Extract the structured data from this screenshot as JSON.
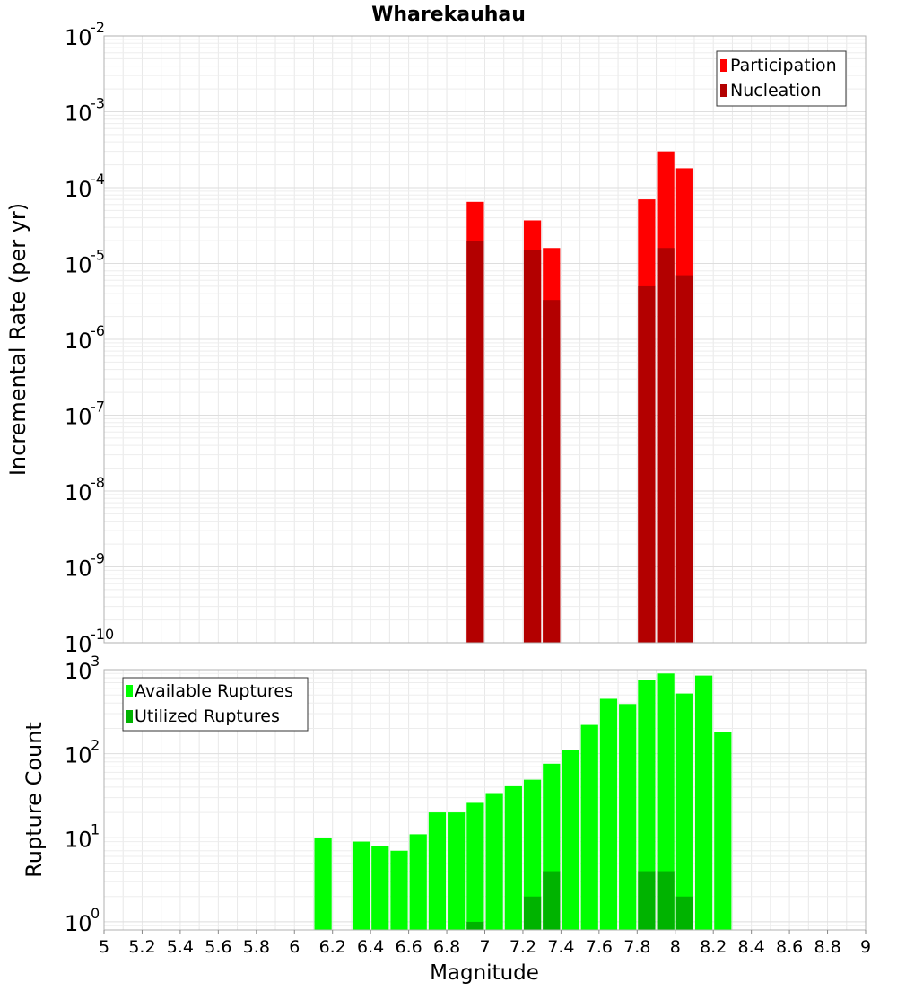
{
  "chart_data": [
    {
      "type": "bar",
      "title": "Wharekauhau",
      "ylabel": "Incremental Rate (per yr)",
      "xlabel": "",
      "y_scale": "log",
      "ylim": [
        1e-10,
        0.01
      ],
      "xlim": [
        5,
        9
      ],
      "y_ticks": [
        {
          "base": "10",
          "exp": "-10"
        },
        {
          "base": "10",
          "exp": "-9"
        },
        {
          "base": "10",
          "exp": "-8"
        },
        {
          "base": "10",
          "exp": "-7"
        },
        {
          "base": "10",
          "exp": "-6"
        },
        {
          "base": "10",
          "exp": "-5"
        },
        {
          "base": "10",
          "exp": "-4"
        },
        {
          "base": "10",
          "exp": "-3"
        },
        {
          "base": "10",
          "exp": "-2"
        }
      ],
      "grid": true,
      "legend_position": "top-right",
      "bar_width": 0.1,
      "series": [
        {
          "name": "Participation",
          "color": "#ff0000",
          "x": [
            6.95,
            7.25,
            7.35,
            7.85,
            7.95,
            8.05
          ],
          "values": [
            6.5e-05,
            3.7e-05,
            1.6e-05,
            7e-05,
            0.0003,
            0.00018
          ]
        },
        {
          "name": "Nucleation",
          "color": "#b30000",
          "x": [
            6.95,
            7.25,
            7.35,
            7.85,
            7.95,
            8.05
          ],
          "values": [
            2e-05,
            1.5e-05,
            3.3e-06,
            5e-06,
            1.6e-05,
            7e-06
          ]
        }
      ]
    },
    {
      "type": "bar",
      "title": "",
      "ylabel": "Rupture Count",
      "xlabel": "Magnitude",
      "y_scale": "log",
      "ylim": [
        0.8,
        1000
      ],
      "xlim": [
        5,
        9
      ],
      "y_ticks": [
        {
          "base": "10",
          "exp": "0"
        },
        {
          "base": "10",
          "exp": "1"
        },
        {
          "base": "10",
          "exp": "2"
        },
        {
          "base": "10",
          "exp": "3"
        }
      ],
      "x_ticks": [
        "5",
        "5.2",
        "5.4",
        "5.6",
        "5.8",
        "6",
        "6.2",
        "6.4",
        "6.6",
        "6.8",
        "7",
        "7.2",
        "7.4",
        "7.6",
        "7.8",
        "8",
        "8.2",
        "8.4",
        "8.6",
        "8.8",
        "9"
      ],
      "grid": true,
      "legend_position": "top-left",
      "bar_width": 0.1,
      "series": [
        {
          "name": "Available Ruptures",
          "color": "#00ff00",
          "x": [
            6.15,
            6.35,
            6.45,
            6.55,
            6.65,
            6.75,
            6.85,
            6.95,
            7.05,
            7.15,
            7.25,
            7.35,
            7.45,
            7.55,
            7.65,
            7.75,
            7.85,
            7.95,
            8.05,
            8.15,
            8.25
          ],
          "values": [
            10,
            9,
            8,
            7,
            11,
            20,
            20,
            26,
            34,
            41,
            49,
            76,
            110,
            220,
            450,
            390,
            750,
            900,
            520,
            850,
            180
          ]
        },
        {
          "name": "Utilized Ruptures",
          "color": "#00b300",
          "x": [
            6.95,
            7.25,
            7.35,
            7.85,
            7.95,
            8.05
          ],
          "values": [
            1,
            2,
            4,
            4,
            4,
            2
          ]
        }
      ]
    }
  ]
}
